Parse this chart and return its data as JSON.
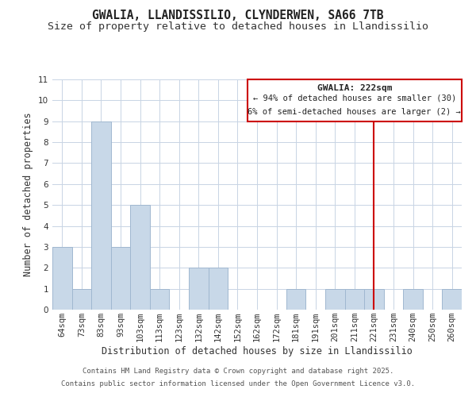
{
  "title": "GWALIA, LLANDISSILIO, CLYNDERWEN, SA66 7TB",
  "subtitle": "Size of property relative to detached houses in Llandissilio",
  "xlabel": "Distribution of detached houses by size in Llandissilio",
  "ylabel": "Number of detached properties",
  "bar_labels": [
    "64sqm",
    "73sqm",
    "83sqm",
    "93sqm",
    "103sqm",
    "113sqm",
    "123sqm",
    "132sqm",
    "142sqm",
    "152sqm",
    "162sqm",
    "172sqm",
    "181sqm",
    "191sqm",
    "201sqm",
    "211sqm",
    "221sqm",
    "231sqm",
    "240sqm",
    "250sqm",
    "260sqm"
  ],
  "bar_values": [
    3,
    1,
    9,
    3,
    5,
    1,
    0,
    2,
    2,
    0,
    0,
    0,
    1,
    0,
    1,
    1,
    1,
    0,
    1,
    0,
    1
  ],
  "bar_color": "#c8d8e8",
  "bar_edge_color": "#a0b8d0",
  "vline_index": 16.5,
  "vline_color": "#cc0000",
  "annotation_title": "GWALIA: 222sqm",
  "annotation_line1": "← 94% of detached houses are smaller (30)",
  "annotation_line2": "6% of semi-detached houses are larger (2) →",
  "annotation_box_color": "#cc0000",
  "ylim": [
    0,
    11
  ],
  "yticks": [
    0,
    1,
    2,
    3,
    4,
    5,
    6,
    7,
    8,
    9,
    10,
    11
  ],
  "footer1": "Contains HM Land Registry data © Crown copyright and database right 2025.",
  "footer2": "Contains public sector information licensed under the Open Government Licence v3.0.",
  "bg_color": "#ffffff",
  "grid_color": "#c8d4e4",
  "title_fontsize": 10.5,
  "subtitle_fontsize": 9.5,
  "axis_label_fontsize": 8.5,
  "tick_fontsize": 7.5,
  "footer_fontsize": 6.5
}
